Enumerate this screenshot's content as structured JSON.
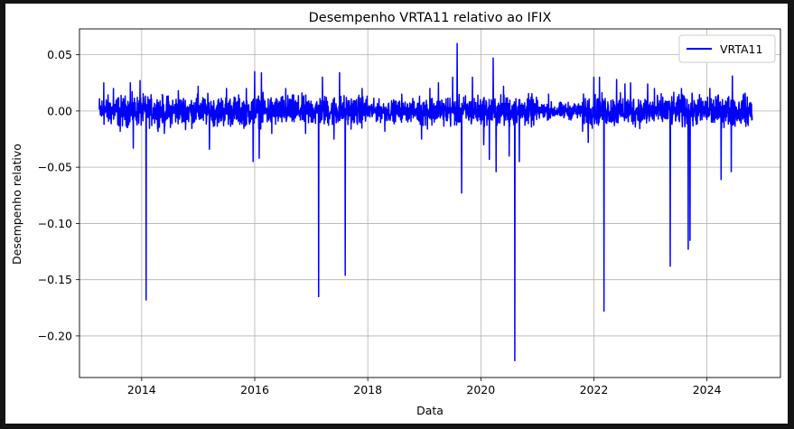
{
  "chart_data": {
    "type": "line",
    "title": "Desempenho VRTA11 relativo ao IFIX",
    "xlabel": "Data",
    "ylabel": "Desempenho relativo",
    "xlim": [
      2012.9,
      2025.3
    ],
    "ylim": [
      -0.237,
      0.073
    ],
    "x_ticks": [
      2014,
      2016,
      2018,
      2020,
      2022,
      2024
    ],
    "x_tick_labels": [
      "2014",
      "2016",
      "2018",
      "2020",
      "2022",
      "2024"
    ],
    "y_ticks": [
      0.05,
      0.0,
      -0.05,
      -0.1,
      -0.15,
      -0.2
    ],
    "y_tick_labels": [
      "0.05",
      "0.00",
      "−0.05",
      "−0.10",
      "−0.15",
      "−0.20"
    ],
    "grid": true,
    "legend": "top-right",
    "series": [
      {
        "name": "VRTA11",
        "color": "#0000ff",
        "x_start": 2013.25,
        "x_end": 2024.8,
        "noise_amplitude": 0.008,
        "spikes": [
          {
            "x": 2013.33,
            "y": 0.025
          },
          {
            "x": 2013.5,
            "y": 0.02
          },
          {
            "x": 2013.62,
            "y": -0.018
          },
          {
            "x": 2013.8,
            "y": 0.025
          },
          {
            "x": 2013.85,
            "y": -0.033
          },
          {
            "x": 2013.97,
            "y": 0.027
          },
          {
            "x": 2014.08,
            "y": -0.168
          },
          {
            "x": 2014.4,
            "y": -0.02
          },
          {
            "x": 2014.65,
            "y": 0.018
          },
          {
            "x": 2015.0,
            "y": 0.022
          },
          {
            "x": 2015.2,
            "y": -0.025
          },
          {
            "x": 2015.5,
            "y": 0.02
          },
          {
            "x": 2015.2,
            "y": -0.034
          },
          {
            "x": 2015.85,
            "y": 0.02
          },
          {
            "x": 2015.97,
            "y": -0.045
          },
          {
            "x": 2016.0,
            "y": 0.035
          },
          {
            "x": 2016.08,
            "y": -0.042
          },
          {
            "x": 2016.12,
            "y": 0.034
          },
          {
            "x": 2016.3,
            "y": -0.02
          },
          {
            "x": 2016.55,
            "y": 0.02
          },
          {
            "x": 2016.9,
            "y": -0.02
          },
          {
            "x": 2017.13,
            "y": -0.165
          },
          {
            "x": 2017.2,
            "y": 0.03
          },
          {
            "x": 2017.4,
            "y": -0.025
          },
          {
            "x": 2017.5,
            "y": 0.034
          },
          {
            "x": 2017.6,
            "y": -0.146
          },
          {
            "x": 2017.9,
            "y": 0.02
          },
          {
            "x": 2018.3,
            "y": -0.018
          },
          {
            "x": 2018.6,
            "y": 0.015
          },
          {
            "x": 2018.95,
            "y": -0.025
          },
          {
            "x": 2019.1,
            "y": 0.02
          },
          {
            "x": 2019.25,
            "y": 0.025
          },
          {
            "x": 2019.5,
            "y": 0.03
          },
          {
            "x": 2019.58,
            "y": 0.06
          },
          {
            "x": 2019.66,
            "y": -0.073
          },
          {
            "x": 2019.85,
            "y": 0.03
          },
          {
            "x": 2020.05,
            "y": -0.03
          },
          {
            "x": 2020.15,
            "y": -0.043
          },
          {
            "x": 2020.22,
            "y": 0.047
          },
          {
            "x": 2020.27,
            "y": -0.054
          },
          {
            "x": 2020.4,
            "y": 0.022
          },
          {
            "x": 2020.5,
            "y": -0.04
          },
          {
            "x": 2020.6,
            "y": -0.222
          },
          {
            "x": 2020.68,
            "y": -0.045
          },
          {
            "x": 2021.2,
            "y": 0.015
          },
          {
            "x": 2021.8,
            "y": -0.018
          },
          {
            "x": 2021.9,
            "y": -0.028
          },
          {
            "x": 2022.0,
            "y": 0.03
          },
          {
            "x": 2022.1,
            "y": 0.03
          },
          {
            "x": 2022.18,
            "y": -0.178
          },
          {
            "x": 2022.4,
            "y": 0.028
          },
          {
            "x": 2022.55,
            "y": 0.024
          },
          {
            "x": 2022.65,
            "y": 0.025
          },
          {
            "x": 2022.95,
            "y": 0.024
          },
          {
            "x": 2023.07,
            "y": 0.02
          },
          {
            "x": 2023.35,
            "y": -0.138
          },
          {
            "x": 2023.55,
            "y": 0.02
          },
          {
            "x": 2023.67,
            "y": -0.123
          },
          {
            "x": 2023.7,
            "y": -0.115
          },
          {
            "x": 2024.05,
            "y": 0.02
          },
          {
            "x": 2024.25,
            "y": -0.061
          },
          {
            "x": 2024.43,
            "y": -0.054
          },
          {
            "x": 2024.45,
            "y": 0.031
          },
          {
            "x": 2024.65,
            "y": 0.015
          }
        ]
      }
    ]
  }
}
